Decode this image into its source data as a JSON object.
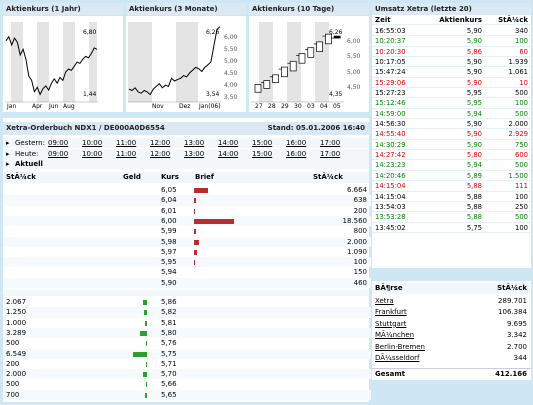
{
  "charts": {
    "c1": {
      "title": "Aktienkurs (1 Jahr)",
      "y_labels": [
        "6,80",
        "1,44"
      ],
      "x_labels": [
        "Jan",
        "Apr",
        "Jun",
        "Aug"
      ],
      "prices": [
        5.6,
        5.9,
        5.3,
        5.8,
        5.5,
        4.6,
        5.0,
        4.3,
        3.1,
        2.8,
        2.0,
        2.3,
        1.8,
        2.2,
        2.4,
        2.1,
        2.6,
        2.9,
        2.6,
        3.0,
        2.8,
        3.4,
        3.6,
        3.5,
        3.8,
        4.1,
        4.0,
        4.3,
        4.5,
        4.4,
        4.7,
        5.1,
        5.0
      ]
    },
    "c2": {
      "title": "Aktienkurs (3 Monate)",
      "y_labels": [
        "6,00",
        "5,50",
        "5,00",
        "4,50",
        "4,00",
        "3,50"
      ],
      "top_label": "6,26",
      "low_label": "3,54",
      "x_labels": [
        "Nov",
        "Dez",
        "Jan(06)"
      ],
      "prices": [
        3.9,
        3.85,
        3.95,
        3.8,
        3.75,
        3.85,
        3.8,
        3.7,
        3.9,
        4.0,
        4.1,
        3.95,
        4.05,
        4.0,
        4.3,
        4.2,
        4.25,
        4.3,
        4.4,
        4.35,
        4.5,
        4.6,
        4.7,
        4.65,
        4.55,
        4.7,
        4.8,
        4.9,
        5.5,
        6.1,
        6.2
      ]
    },
    "c3": {
      "title": "Aktienkurs (10 Tage)",
      "y_labels": [
        "6,00",
        "5,50",
        "5,00",
        "4,50"
      ],
      "top_label": "6,26",
      "low_label": "4,35",
      "x_labels": [
        "27",
        "28",
        "29",
        "30",
        "03",
        "04",
        "05"
      ],
      "candles": [
        [
          4.55,
          4.75
        ],
        [
          4.65,
          4.85
        ],
        [
          4.8,
          5.0
        ],
        [
          4.95,
          5.2
        ],
        [
          5.1,
          5.35
        ],
        [
          5.3,
          5.55
        ],
        [
          5.45,
          5.7
        ],
        [
          5.6,
          5.85
        ],
        [
          5.8,
          6.05
        ],
        [
          5.95,
          6.0
        ]
      ]
    }
  },
  "umsatz": {
    "title": "Umsatz Xetra (letzte 20)",
    "headers": {
      "time": "Zeit",
      "price": "Aktienkurs",
      "qty": "StÃ¼ck"
    },
    "rows": [
      {
        "time": "16:55:03",
        "price": "5,90",
        "qty": "340",
        "color": "#000000"
      },
      {
        "time": "10:20:37",
        "price": "5,90",
        "qty": "100",
        "color": "#008800"
      },
      {
        "time": "10:20:30",
        "price": "5,86",
        "qty": "60",
        "color": "#dd0000"
      },
      {
        "time": "10:17:05",
        "price": "5,90",
        "qty": "1.939",
        "color": "#000000"
      },
      {
        "time": "15:47:24",
        "price": "5,90",
        "qty": "1.061",
        "color": "#000000"
      },
      {
        "time": "15:29:06",
        "price": "5,90",
        "qty": "10",
        "color": "#dd0000"
      },
      {
        "time": "15:27:23",
        "price": "5,95",
        "qty": "500",
        "color": "#000000"
      },
      {
        "time": "15:12:46",
        "price": "5,95",
        "qty": "100",
        "color": "#008800"
      },
      {
        "time": "14:59:00",
        "price": "5,94",
        "qty": "500",
        "color": "#008800"
      },
      {
        "time": "14:56:30",
        "price": "5,90",
        "qty": "2.000",
        "color": "#000000"
      },
      {
        "time": "14:55:40",
        "price": "5,90",
        "qty": "2.929",
        "color": "#dd0000"
      },
      {
        "time": "14:30:29",
        "price": "5,90",
        "qty": "750",
        "color": "#008800"
      },
      {
        "time": "14:27:42",
        "price": "5,80",
        "qty": "600",
        "color": "#dd0000"
      },
      {
        "time": "14:23:23",
        "price": "5,94",
        "qty": "500",
        "color": "#008800"
      },
      {
        "time": "14:20:46",
        "price": "5,89",
        "qty": "1.500",
        "color": "#008800"
      },
      {
        "time": "14:15:04",
        "price": "5,88",
        "qty": "111",
        "color": "#dd0000"
      },
      {
        "time": "14:15:04",
        "price": "5,88",
        "qty": "100",
        "color": "#000000"
      },
      {
        "time": "13:54:03",
        "price": "5,88",
        "qty": "250",
        "color": "#000000"
      },
      {
        "time": "13:53:28",
        "price": "5,88",
        "qty": "500",
        "color": "#008800"
      },
      {
        "time": "13:45:02",
        "price": "5,75",
        "qty": "100",
        "color": "#000000"
      }
    ]
  },
  "orderbook": {
    "title": "Xetra-Orderbuch NDX1 / DE000A0D6554",
    "stand": "Stand: 05.01.2006 16:40",
    "gestern_label": "Gestern:",
    "heute_label": "Heute:",
    "aktuell_label": "Aktuell",
    "gestern_times": [
      "09:00",
      "10:00",
      "11:00",
      "12:00",
      "13:00",
      "14:00",
      "15:00",
      "16:00",
      "17:00"
    ],
    "heute_times": [
      "09:00",
      "10:00",
      "11:00",
      "12:00",
      "13:00",
      "14:00",
      "15:00",
      "16:00",
      "17:00"
    ],
    "headers": {
      "stueck_left": "StÃ¼ck",
      "geld": "Geld",
      "kurs": "Kurs",
      "brief": "Brief",
      "stueck_right": "StÃ¼ck"
    },
    "asks": [
      {
        "kurs": "6,05",
        "stueck": "6.664",
        "bar": 14
      },
      {
        "kurs": "6,04",
        "stueck": "638",
        "bar": 2
      },
      {
        "kurs": "6,01",
        "stueck": "200",
        "bar": 1
      },
      {
        "kurs": "6,00",
        "stueck": "18.560",
        "bar": 40
      },
      {
        "kurs": "5,99",
        "stueck": "800",
        "bar": 2
      },
      {
        "kurs": "5,98",
        "stueck": "2.000",
        "bar": 5
      },
      {
        "kurs": "5,97",
        "stueck": "1.090",
        "bar": 3
      },
      {
        "kurs": "5,95",
        "stueck": "100",
        "bar": 1
      },
      {
        "kurs": "5,94",
        "stueck": "150",
        "bar": 0
      },
      {
        "kurs": "5,90",
        "stueck": "460",
        "bar": 0
      }
    ],
    "bids": [
      {
        "stueck": "2.067",
        "kurs": "5,86",
        "bar": 4
      },
      {
        "stueck": "1.250",
        "kurs": "5,82",
        "bar": 3
      },
      {
        "stueck": "1.000",
        "kurs": "5,81",
        "bar": 2
      },
      {
        "stueck": "3.289",
        "kurs": "5,80",
        "bar": 7
      },
      {
        "stueck": "500",
        "kurs": "5,76",
        "bar": 1
      },
      {
        "stueck": "6.549",
        "kurs": "5,75",
        "bar": 14
      },
      {
        "stueck": "200",
        "kurs": "5,71",
        "bar": 1
      },
      {
        "stueck": "2.000",
        "kurs": "5,70",
        "bar": 4
      },
      {
        "stueck": "500",
        "kurs": "5,66",
        "bar": 1
      },
      {
        "stueck": "700",
        "kurs": "5,65",
        "bar": 2
      }
    ]
  },
  "boersen": {
    "headers": {
      "name": "BÃ¶rse",
      "qty": "StÃ¼ck"
    },
    "rows": [
      {
        "name": "Xetra",
        "qty": "289.701"
      },
      {
        "name": "Frankfurt",
        "qty": "106.384"
      },
      {
        "name": "Stuttgart",
        "qty": "9.695"
      },
      {
        "name": "MÃ¼nchen",
        "qty": "3.342"
      },
      {
        "name": "Berlin-Bremen",
        "qty": "2.700"
      },
      {
        "name": "DÃ¼sseldorf",
        "qty": "344"
      }
    ],
    "total_label": "Gesamt",
    "total_qty": "412.166"
  },
  "colors": {
    "ask_bar": "#b82e2e",
    "bid_bar": "#2e9e2e",
    "header_bg": "#dbe9f4",
    "page_bg": "#cfe6f5"
  }
}
